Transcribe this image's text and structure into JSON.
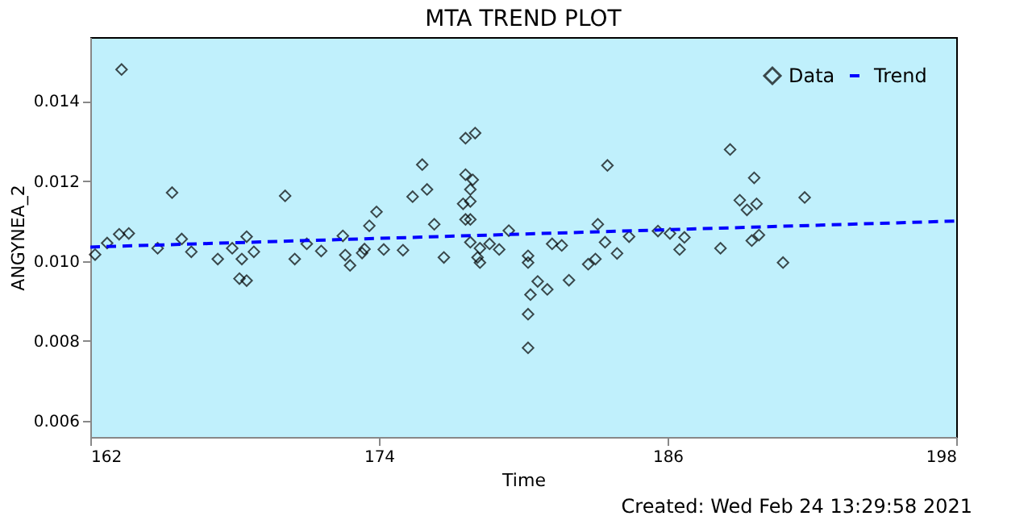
{
  "chart_data": {
    "type": "scatter",
    "title": "MTA TREND PLOT",
    "xlabel": "Time",
    "ylabel": "ANGYNEA_2",
    "annotations": [
      "Created: Wed Feb 24 13:29:58 2021"
    ],
    "xlim": [
      162,
      198
    ],
    "xticks": [
      162,
      174,
      186,
      198
    ],
    "ylim": [
      0.0056,
      0.0156
    ],
    "yticks": [
      0.006,
      0.008,
      {
        "value": 0.01,
        "label": "0.010"
      },
      0.012,
      0.014
    ],
    "grid": false,
    "legend": "top right",
    "series": [
      {
        "name": "Data",
        "marker": "diamond",
        "color": "#000000",
        "x": [
          162.2,
          162.7,
          163.2,
          163.3,
          163.6,
          164.8,
          165.4,
          165.8,
          166.2,
          167.3,
          167.9,
          168.3,
          168.2,
          168.5,
          168.5,
          168.8,
          170.1,
          170.5,
          171.0,
          171.6,
          172.5,
          172.6,
          172.8,
          173.3,
          173.6,
          173.9,
          173.4,
          174.2,
          175.0,
          175.8,
          175.4,
          176.0,
          176.3,
          176.7,
          177.6,
          178.0,
          177.6,
          177.9,
          177.8,
          177.5,
          177.8,
          177.6,
          177.8,
          177.8,
          178.2,
          178.1,
          178.2,
          178.6,
          179.0,
          179.4,
          180.2,
          180.2,
          180.6,
          180.3,
          181.0,
          180.2,
          180.2,
          181.2,
          181.6,
          181.9,
          182.7,
          183.0,
          183.5,
          183.1,
          183.4,
          183.9,
          184.4,
          185.6,
          186.1,
          186.5,
          186.7,
          188.2,
          188.6,
          189.0,
          189.3,
          189.6,
          189.7,
          189.5,
          189.8,
          190.8,
          191.7
        ],
        "values": [
          0.01016,
          0.01045,
          0.01067,
          0.01479,
          0.01069,
          0.01032,
          0.01171,
          0.01055,
          0.01023,
          0.01005,
          0.01032,
          0.01005,
          0.00956,
          0.01061,
          0.00951,
          0.01023,
          0.01163,
          0.01005,
          0.01043,
          0.01025,
          0.01063,
          0.01015,
          0.00989,
          0.0102,
          0.01088,
          0.01123,
          0.0103,
          0.01029,
          0.01027,
          0.01241,
          0.01161,
          0.01179,
          0.01092,
          0.01009,
          0.01307,
          0.0132,
          0.01216,
          0.01203,
          0.01179,
          0.01143,
          0.01149,
          0.01104,
          0.01104,
          0.01047,
          0.01032,
          0.01009,
          0.00996,
          0.01043,
          0.01029,
          0.01076,
          0.01013,
          0.00996,
          0.00949,
          0.00916,
          0.00929,
          0.00867,
          0.00783,
          0.01043,
          0.01039,
          0.00952,
          0.00992,
          0.01005,
          0.01239,
          0.01092,
          0.01047,
          0.01019,
          0.01061,
          0.01075,
          0.01069,
          0.01029,
          0.01059,
          0.01032,
          0.01279,
          0.01152,
          0.01128,
          0.01208,
          0.01143,
          0.01051,
          0.01065,
          0.00996,
          0.01159
        ]
      },
      {
        "name": "Trend",
        "type": "line",
        "line_style": "dashed",
        "color": "#0000ff",
        "x": [
          162,
          198
        ],
        "values": [
          0.01035,
          0.011
        ]
      }
    ]
  }
}
